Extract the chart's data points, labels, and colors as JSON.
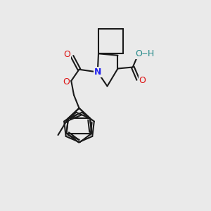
{
  "bg": "#eaeaea",
  "bond_color": "#1a1a1a",
  "N_color": "#2222ee",
  "O_color": "#dd1111",
  "OH_color": "#228888",
  "lw": 1.5,
  "figsize": [
    3.0,
    3.0
  ],
  "dpi": 100,
  "xlim": [
    -1,
    11
  ],
  "ylim": [
    -0.5,
    10.5
  ]
}
